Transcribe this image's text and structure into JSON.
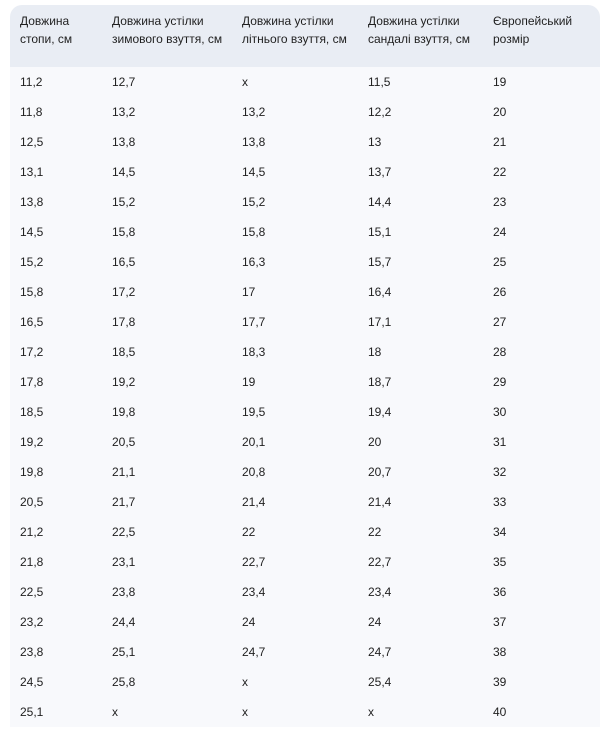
{
  "table": {
    "headers": [
      "Довжина стопи, см",
      "Довжина устілки зимового взуття, см",
      "Довжина устілки літнього взуття, см",
      "Довжина устілки сандалі взуття, см",
      "Європейський розмір"
    ],
    "rows": [
      [
        "11,2",
        "12,7",
        "x",
        "11,5",
        "19"
      ],
      [
        "11,8",
        "13,2",
        "13,2",
        "12,2",
        "20"
      ],
      [
        "12,5",
        "13,8",
        "13,8",
        "13",
        "21"
      ],
      [
        "13,1",
        "14,5",
        "14,5",
        "13,7",
        "22"
      ],
      [
        "13,8",
        "15,2",
        "15,2",
        "14,4",
        "23"
      ],
      [
        "14,5",
        "15,8",
        "15,8",
        "15,1",
        "24"
      ],
      [
        "15,2",
        "16,5",
        "16,3",
        "15,7",
        "25"
      ],
      [
        "15,8",
        "17,2",
        "17",
        "16,4",
        "26"
      ],
      [
        "16,5",
        "17,8",
        "17,7",
        "17,1",
        "27"
      ],
      [
        "17,2",
        "18,5",
        "18,3",
        "18",
        "28"
      ],
      [
        "17,8",
        "19,2",
        "19",
        "18,7",
        "29"
      ],
      [
        "18,5",
        "19,8",
        "19,5",
        "19,4",
        "30"
      ],
      [
        "19,2",
        "20,5",
        "20,1",
        "20",
        "31"
      ],
      [
        "19,8",
        "21,1",
        "20,8",
        "20,7",
        "32"
      ],
      [
        "20,5",
        "21,7",
        "21,4",
        "21,4",
        "33"
      ],
      [
        "21,2",
        "22,5",
        "22",
        "22",
        "34"
      ],
      [
        "21,8",
        "23,1",
        "22,7",
        "22,7",
        "35"
      ],
      [
        "22,5",
        "23,8",
        "23,4",
        "23,4",
        "36"
      ],
      [
        "23,2",
        "24,4",
        "24",
        "24",
        "37"
      ],
      [
        "23,8",
        "25,1",
        "24,7",
        "24,7",
        "38"
      ],
      [
        "24,5",
        "25,8",
        "x",
        "25,4",
        "39"
      ],
      [
        "25,1",
        "x",
        "x",
        "x",
        "40"
      ]
    ]
  }
}
